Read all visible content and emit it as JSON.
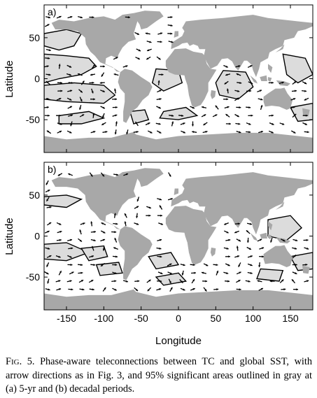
{
  "figure": {
    "panels": [
      {
        "id": "a",
        "label": "a)"
      },
      {
        "id": "b",
        "label": "b)"
      }
    ],
    "ylabel": "Latitude",
    "xlabel": "Longitude",
    "xticks": [
      "-150",
      "-100",
      "-50",
      "0",
      "50",
      "100",
      "150"
    ],
    "yticks": [
      "50",
      "0",
      "-50"
    ],
    "xlim": [
      -180,
      180
    ],
    "ylim": [
      -90,
      90
    ],
    "colors": {
      "land": "#a8a8a8",
      "significant": "#dcdcdc",
      "contour": "#000000",
      "arrow": "#000000"
    }
  },
  "caption": {
    "fig_prefix_first": "F",
    "fig_prefix_rest": "IG",
    "fig_number": ". 5.",
    "text": " Phase-aware teleconnections between TC and global SST, with arrow directions as in Fig. 3, and 95% significant areas outlined in gray at (a) 5-yr and (b) decadal periods."
  }
}
